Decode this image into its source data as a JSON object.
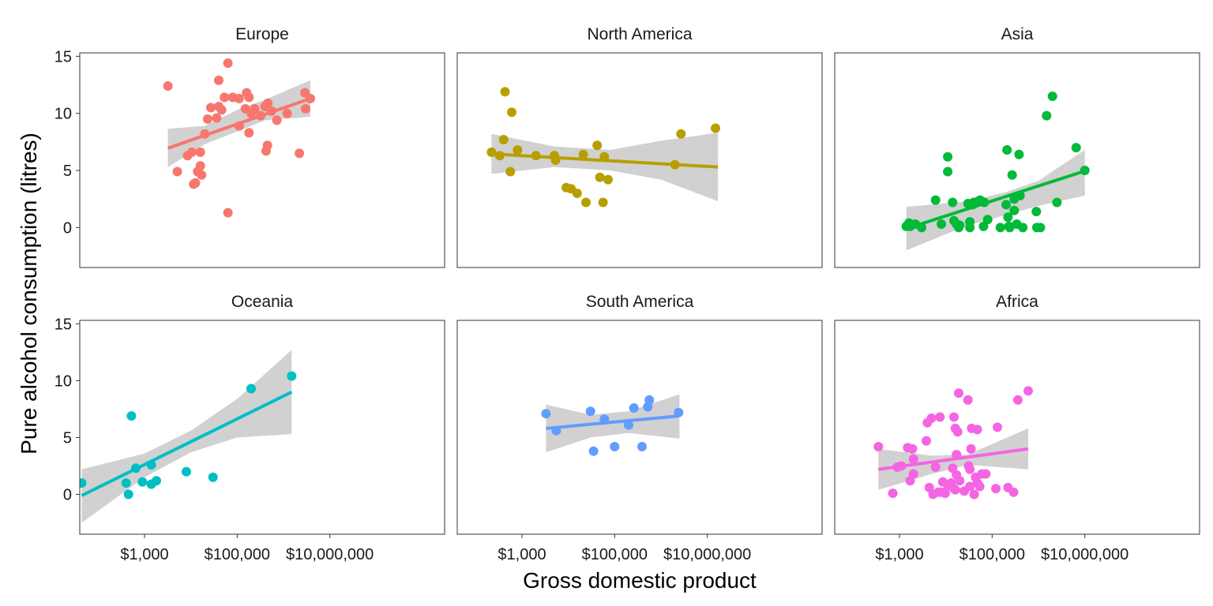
{
  "chart_data": {
    "type": "scatter",
    "xlabel": "Gross domestic product",
    "ylabel": "Pure alcohol consumption (litres)",
    "x_scale": "log10",
    "xlim": [
      40,
      3000000000
    ],
    "ylim": [
      -3.5,
      15.3
    ],
    "x_ticks": [
      {
        "value": 1000,
        "label": "$1,000"
      },
      {
        "value": 100000,
        "label": "$100,000"
      },
      {
        "value": 10000000,
        "label": "$10,000,000"
      }
    ],
    "y_ticks": [
      {
        "value": 0,
        "label": "0"
      },
      {
        "value": 5,
        "label": "5"
      },
      {
        "value": 10,
        "label": "10"
      },
      {
        "value": 15,
        "label": "15"
      }
    ],
    "grid": false,
    "panels": [
      {
        "name": "Europe",
        "color": "#F8766D",
        "fit": {
          "x": [
            3200,
            3800000
          ],
          "y": [
            6.95,
            11.3
          ]
        },
        "band": {
          "x": [
            3200,
            20000,
            100000,
            400000,
            3800000
          ],
          "lower": [
            5.3,
            7.3,
            8.4,
            9.4,
            9.7
          ],
          "upper": [
            8.65,
            8.9,
            10.3,
            11.2,
            12.9
          ]
        },
        "points": [
          [
            3200,
            12.4
          ],
          [
            5100,
            4.9
          ],
          [
            8500,
            6.3
          ],
          [
            10500,
            6.6
          ],
          [
            11500,
            3.8
          ],
          [
            12500,
            3.9
          ],
          [
            14000,
            4.9
          ],
          [
            16000,
            5.4
          ],
          [
            16000,
            6.6
          ],
          [
            17000,
            4.6
          ],
          [
            20000,
            8.2
          ],
          [
            23000,
            9.5
          ],
          [
            27000,
            10.5
          ],
          [
            36000,
            9.6
          ],
          [
            40000,
            12.9
          ],
          [
            40000,
            10.6
          ],
          [
            46000,
            10.3
          ],
          [
            53000,
            11.4
          ],
          [
            63000,
            14.4
          ],
          [
            63000,
            1.3
          ],
          [
            80000,
            11.4
          ],
          [
            110000,
            8.9
          ],
          [
            110000,
            11.3
          ],
          [
            150000,
            10.4
          ],
          [
            160000,
            11.8
          ],
          [
            180000,
            11.4
          ],
          [
            180000,
            8.3
          ],
          [
            200000,
            10.0
          ],
          [
            240000,
            10.4
          ],
          [
            320000,
            9.8
          ],
          [
            400000,
            10.6
          ],
          [
            420000,
            6.7
          ],
          [
            450000,
            7.2
          ],
          [
            460000,
            10.9
          ],
          [
            550000,
            10.2
          ],
          [
            720000,
            9.4
          ],
          [
            1200000,
            10.0
          ],
          [
            2200000,
            6.5
          ],
          [
            2900000,
            11.8
          ],
          [
            3000000,
            10.4
          ],
          [
            3800000,
            11.3
          ]
        ]
      },
      {
        "name": "North America",
        "color": "#B79F00",
        "fit": {
          "x": [
            220,
            17000000
          ],
          "y": [
            6.45,
            5.3
          ]
        },
        "band": {
          "x": [
            220,
            5000,
            80000,
            1000000,
            17000000
          ],
          "lower": [
            4.7,
            5.3,
            5.0,
            4.2,
            2.3
          ],
          "upper": [
            8.2,
            7.1,
            6.8,
            7.6,
            8.3
          ]
        },
        "points": [
          [
            220,
            6.6
          ],
          [
            330,
            6.3
          ],
          [
            400,
            7.7
          ],
          [
            430,
            11.9
          ],
          [
            560,
            4.9
          ],
          [
            600,
            10.1
          ],
          [
            800,
            6.8
          ],
          [
            2000,
            6.3
          ],
          [
            5000,
            6.3
          ],
          [
            5300,
            5.9
          ],
          [
            9000,
            3.5
          ],
          [
            11500,
            3.4
          ],
          [
            15500,
            3.0
          ],
          [
            21000,
            6.4
          ],
          [
            24000,
            2.2
          ],
          [
            42000,
            7.2
          ],
          [
            48000,
            4.4
          ],
          [
            56000,
            2.2
          ],
          [
            60000,
            6.2
          ],
          [
            72000,
            4.2
          ],
          [
            2000000,
            5.5
          ],
          [
            2700000,
            8.2
          ],
          [
            15000000,
            8.7
          ]
        ]
      },
      {
        "name": "Asia",
        "color": "#00BA38",
        "fit": {
          "x": [
            1400,
            10000000
          ],
          "y": [
            -0.1,
            4.95
          ]
        },
        "band": {
          "x": [
            1400,
            30000,
            200000,
            1000000,
            10000000
          ],
          "lower": [
            -2.0,
            0.2,
            1.1,
            1.9,
            2.8
          ],
          "upper": [
            1.8,
            2.3,
            3.1,
            4.1,
            6.8
          ]
        },
        "points": [
          [
            1400,
            0.1
          ],
          [
            1600,
            0.4
          ],
          [
            1700,
            0.1
          ],
          [
            2200,
            0.3
          ],
          [
            3000,
            0.0
          ],
          [
            6000,
            2.4
          ],
          [
            8000,
            0.3
          ],
          [
            11000,
            6.2
          ],
          [
            11000,
            4.9
          ],
          [
            14000,
            2.2
          ],
          [
            15000,
            0.6
          ],
          [
            17000,
            0.3
          ],
          [
            19000,
            0.0
          ],
          [
            20000,
            0.2
          ],
          [
            30000,
            2.1
          ],
          [
            33000,
            0.0
          ],
          [
            33000,
            0.5
          ],
          [
            38000,
            2.0
          ],
          [
            40000,
            2.2
          ],
          [
            50000,
            2.3
          ],
          [
            55000,
            2.4
          ],
          [
            65000,
            0.1
          ],
          [
            68000,
            2.2
          ],
          [
            80000,
            0.7
          ],
          [
            150000,
            0.0
          ],
          [
            200000,
            2.0
          ],
          [
            210000,
            6.8
          ],
          [
            220000,
            0.9
          ],
          [
            230000,
            0.1
          ],
          [
            240000,
            0.0
          ],
          [
            270000,
            4.6
          ],
          [
            300000,
            2.5
          ],
          [
            300000,
            1.5
          ],
          [
            340000,
            0.3
          ],
          [
            380000,
            6.4
          ],
          [
            400000,
            2.8
          ],
          [
            460000,
            0.0
          ],
          [
            900000,
            1.4
          ],
          [
            920000,
            0.0
          ],
          [
            1100000,
            0.0
          ],
          [
            1500000,
            9.8
          ],
          [
            2000000,
            11.5
          ],
          [
            2500000,
            2.2
          ],
          [
            6500000,
            7.0
          ],
          [
            10000000,
            5.0
          ]
        ]
      },
      {
        "name": "Oceania",
        "color": "#00BFC4",
        "fit": {
          "x": [
            44,
            1500000
          ],
          "y": [
            -0.1,
            9.0
          ]
        },
        "band": {
          "x": [
            44,
            1000,
            10000,
            100000,
            1500000
          ],
          "lower": [
            -2.5,
            1.5,
            3.7,
            5.0,
            5.3
          ],
          "upper": [
            2.2,
            3.6,
            5.6,
            8.4,
            12.7
          ]
        },
        "points": [
          [
            44,
            1.0
          ],
          [
            400,
            1.0
          ],
          [
            450,
            0.0
          ],
          [
            520,
            6.9
          ],
          [
            650,
            2.3
          ],
          [
            900,
            1.1
          ],
          [
            1400,
            2.6
          ],
          [
            1400,
            0.9
          ],
          [
            1800,
            1.2
          ],
          [
            8000,
            2.0
          ],
          [
            30000,
            1.5
          ],
          [
            200000,
            9.3
          ],
          [
            1500000,
            10.4
          ]
        ]
      },
      {
        "name": "South America",
        "color": "#619CFF",
        "fit": {
          "x": [
            3300,
            2500000
          ],
          "y": [
            5.8,
            6.9
          ]
        },
        "band": {
          "x": [
            3300,
            30000,
            200000,
            2500000
          ],
          "lower": [
            3.7,
            5.0,
            5.4,
            4.9
          ],
          "upper": [
            7.9,
            7.0,
            7.3,
            8.8
          ]
        },
        "points": [
          [
            3300,
            7.1
          ],
          [
            5500,
            5.6
          ],
          [
            30000,
            7.3
          ],
          [
            35000,
            3.8
          ],
          [
            60000,
            6.6
          ],
          [
            100000,
            4.2
          ],
          [
            200000,
            6.1
          ],
          [
            260000,
            7.6
          ],
          [
            390000,
            4.2
          ],
          [
            520000,
            7.7
          ],
          [
            560000,
            8.3
          ],
          [
            2400000,
            7.2
          ]
        ]
      },
      {
        "name": "Africa",
        "color": "#F564E3",
        "fit": {
          "x": [
            350,
            600000
          ],
          "y": [
            2.2,
            4.0
          ]
        },
        "band": {
          "x": [
            350,
            5000,
            30000,
            600000
          ],
          "lower": [
            0.4,
            1.8,
            2.6,
            2.2
          ],
          "upper": [
            4.0,
            3.4,
            3.5,
            5.8
          ]
        },
        "points": [
          [
            350,
            4.2
          ],
          [
            720,
            0.1
          ],
          [
            900,
            2.4
          ],
          [
            1100,
            2.5
          ],
          [
            1500,
            4.1
          ],
          [
            1700,
            1.2
          ],
          [
            1900,
            4.0
          ],
          [
            2000,
            3.1
          ],
          [
            2000,
            1.8
          ],
          [
            3800,
            4.7
          ],
          [
            4000,
            6.3
          ],
          [
            4400,
            0.6
          ],
          [
            4900,
            6.7
          ],
          [
            5300,
            0.0
          ],
          [
            6000,
            2.4
          ],
          [
            6900,
            0.2
          ],
          [
            7500,
            6.8
          ],
          [
            8000,
            0.2
          ],
          [
            8600,
            1.1
          ],
          [
            9700,
            0.1
          ],
          [
            11000,
            0.8
          ],
          [
            13000,
            1.0
          ],
          [
            14000,
            2.3
          ],
          [
            15000,
            6.8
          ],
          [
            15000,
            0.5
          ],
          [
            16000,
            0.4
          ],
          [
            16000,
            5.8
          ],
          [
            17000,
            1.7
          ],
          [
            17000,
            3.5
          ],
          [
            18000,
            5.5
          ],
          [
            19000,
            8.9
          ],
          [
            20000,
            1.2
          ],
          [
            25000,
            0.3
          ],
          [
            30000,
            8.3
          ],
          [
            31000,
            2.5
          ],
          [
            33000,
            2.2
          ],
          [
            33000,
            0.7
          ],
          [
            35000,
            4.0
          ],
          [
            36000,
            5.8
          ],
          [
            41000,
            0.0
          ],
          [
            44000,
            1.5
          ],
          [
            48000,
            5.7
          ],
          [
            48000,
            1.0
          ],
          [
            54000,
            0.7
          ],
          [
            60000,
            1.8
          ],
          [
            73000,
            1.8
          ],
          [
            120000,
            0.5
          ],
          [
            130000,
            5.9
          ],
          [
            220000,
            0.6
          ],
          [
            290000,
            0.2
          ],
          [
            360000,
            8.3
          ],
          [
            600000,
            9.1
          ]
        ]
      }
    ]
  }
}
